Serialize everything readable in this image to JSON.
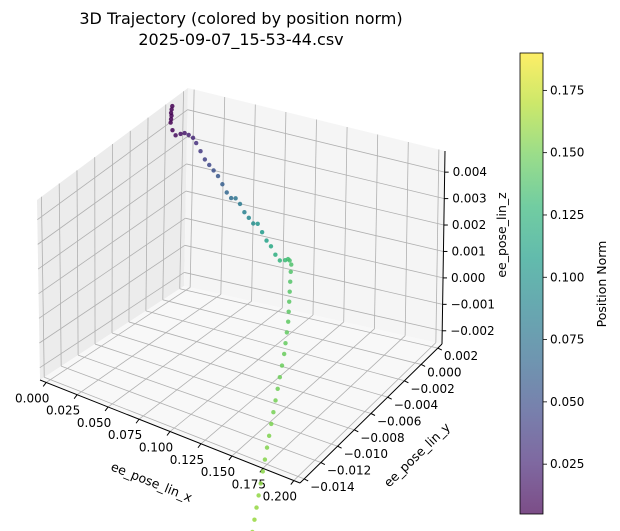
{
  "chart_data": {
    "type": "scatter3d",
    "title": "3D Trajectory (colored by position norm)",
    "subtitle": "2025-09-07_15-53-44.csv",
    "xlabel": "ee_pose_lin_x",
    "ylabel": "ee_pose_lin_y",
    "zlabel": "ee_pose_lin_z",
    "xlim": [
      -0.005,
      0.205
    ],
    "ylim": [
      -0.0145,
      0.0025
    ],
    "zlim": [
      -0.0025,
      0.0048
    ],
    "xticks": [
      "0.000",
      "0.025",
      "0.050",
      "0.075",
      "0.100",
      "0.125",
      "0.150",
      "0.175",
      "0.200"
    ],
    "yticks": [
      "−0.014",
      "−0.012",
      "−0.010",
      "−0.008",
      "−0.006",
      "−0.004",
      "−0.002",
      "0.000",
      "0.002"
    ],
    "zticks": [
      "−0.002",
      "−0.001",
      "0.000",
      "0.001",
      "0.002",
      "0.003",
      "0.004"
    ],
    "colorbar": {
      "label": "Position Norm",
      "range": [
        0.005,
        0.19
      ],
      "ticks": [
        "0.025",
        "0.050",
        "0.075",
        "0.100",
        "0.125",
        "0.150",
        "0.175"
      ],
      "colormap": "viridis"
    },
    "grid": true,
    "points": [
      {
        "x": 0.0003,
        "y": 0.0,
        "z": 0.0048
      },
      {
        "x": 0.0005,
        "y": -0.0001,
        "z": 0.0047
      },
      {
        "x": 0.0008,
        "y": -0.0002,
        "z": 0.0046
      },
      {
        "x": 0.0012,
        "y": -0.0002,
        "z": 0.0045
      },
      {
        "x": 0.0016,
        "y": -0.0003,
        "z": 0.0044
      },
      {
        "x": 0.002,
        "y": -0.0004,
        "z": 0.0043
      },
      {
        "x": 0.005,
        "y": -0.0006,
        "z": 0.0041
      },
      {
        "x": 0.009,
        "y": -0.0008,
        "z": 0.004
      },
      {
        "x": 0.013,
        "y": -0.0008,
        "z": 0.0041
      },
      {
        "x": 0.017,
        "y": -0.0009,
        "z": 0.0042
      },
      {
        "x": 0.021,
        "y": -0.001,
        "z": 0.0042
      },
      {
        "x": 0.026,
        "y": -0.0012,
        "z": 0.0042
      },
      {
        "x": 0.03,
        "y": -0.0014,
        "z": 0.0041
      },
      {
        "x": 0.035,
        "y": -0.0016,
        "z": 0.0039
      },
      {
        "x": 0.04,
        "y": -0.0018,
        "z": 0.0037
      },
      {
        "x": 0.045,
        "y": -0.002,
        "z": 0.0036
      },
      {
        "x": 0.05,
        "y": -0.0022,
        "z": 0.0035
      },
      {
        "x": 0.055,
        "y": -0.0024,
        "z": 0.0034
      },
      {
        "x": 0.06,
        "y": -0.0026,
        "z": 0.0032
      },
      {
        "x": 0.065,
        "y": -0.0028,
        "z": 0.003
      },
      {
        "x": 0.07,
        "y": -0.003,
        "z": 0.0029
      },
      {
        "x": 0.075,
        "y": -0.0032,
        "z": 0.003
      },
      {
        "x": 0.08,
        "y": -0.0034,
        "z": 0.0029
      },
      {
        "x": 0.085,
        "y": -0.0036,
        "z": 0.0027
      },
      {
        "x": 0.09,
        "y": -0.0038,
        "z": 0.0026
      },
      {
        "x": 0.095,
        "y": -0.004,
        "z": 0.0025
      },
      {
        "x": 0.1,
        "y": -0.0042,
        "z": 0.0026
      },
      {
        "x": 0.105,
        "y": -0.0044,
        "z": 0.0024
      },
      {
        "x": 0.11,
        "y": -0.0046,
        "z": 0.0022
      },
      {
        "x": 0.115,
        "y": -0.0048,
        "z": 0.0021
      },
      {
        "x": 0.12,
        "y": -0.005,
        "z": 0.0019
      },
      {
        "x": 0.125,
        "y": -0.0052,
        "z": 0.0018
      },
      {
        "x": 0.13,
        "y": -0.0053,
        "z": 0.0019
      },
      {
        "x": 0.133,
        "y": -0.0054,
        "z": 0.002
      },
      {
        "x": 0.135,
        "y": -0.0055,
        "z": 0.002
      },
      {
        "x": 0.137,
        "y": -0.0056,
        "z": 0.0019
      },
      {
        "x": 0.138,
        "y": -0.0058,
        "z": 0.0017
      },
      {
        "x": 0.139,
        "y": -0.006,
        "z": 0.0014
      },
      {
        "x": 0.14,
        "y": -0.0062,
        "z": 0.0011
      },
      {
        "x": 0.141,
        "y": -0.0064,
        "z": 0.0008
      },
      {
        "x": 0.142,
        "y": -0.0066,
        "z": 0.0005
      },
      {
        "x": 0.143,
        "y": -0.0068,
        "z": 0.0002
      },
      {
        "x": 0.144,
        "y": -0.0071,
        "z": -0.0001
      },
      {
        "x": 0.145,
        "y": -0.0074,
        "z": -0.0004
      },
      {
        "x": 0.146,
        "y": -0.0077,
        "z": -0.0007
      },
      {
        "x": 0.147,
        "y": -0.0081,
        "z": -0.001
      },
      {
        "x": 0.148,
        "y": -0.0085,
        "z": -0.0013
      },
      {
        "x": 0.149,
        "y": -0.0089,
        "z": -0.0016
      },
      {
        "x": 0.15,
        "y": -0.0093,
        "z": -0.0019
      },
      {
        "x": 0.151,
        "y": -0.0097,
        "z": -0.0022
      },
      {
        "x": 0.152,
        "y": -0.0101,
        "z": -0.0025
      },
      {
        "x": 0.153,
        "y": -0.0105,
        "z": -0.0028
      },
      {
        "x": 0.154,
        "y": -0.0109,
        "z": -0.0031
      },
      {
        "x": 0.155,
        "y": -0.0113,
        "z": -0.0034
      },
      {
        "x": 0.156,
        "y": -0.0117,
        "z": -0.0037
      },
      {
        "x": 0.157,
        "y": -0.0121,
        "z": -0.004
      },
      {
        "x": 0.158,
        "y": -0.0125,
        "z": -0.0043
      },
      {
        "x": 0.159,
        "y": -0.0129,
        "z": -0.0046
      },
      {
        "x": 0.16,
        "y": -0.0133,
        "z": -0.0049
      },
      {
        "x": 0.161,
        "y": -0.0137,
        "z": -0.0052
      },
      {
        "x": 0.162,
        "y": -0.0141,
        "z": -0.0055
      }
    ]
  },
  "colors": {
    "pane": "#f2f2f2",
    "grid": "#b0b0b0",
    "axis": "#000000"
  }
}
